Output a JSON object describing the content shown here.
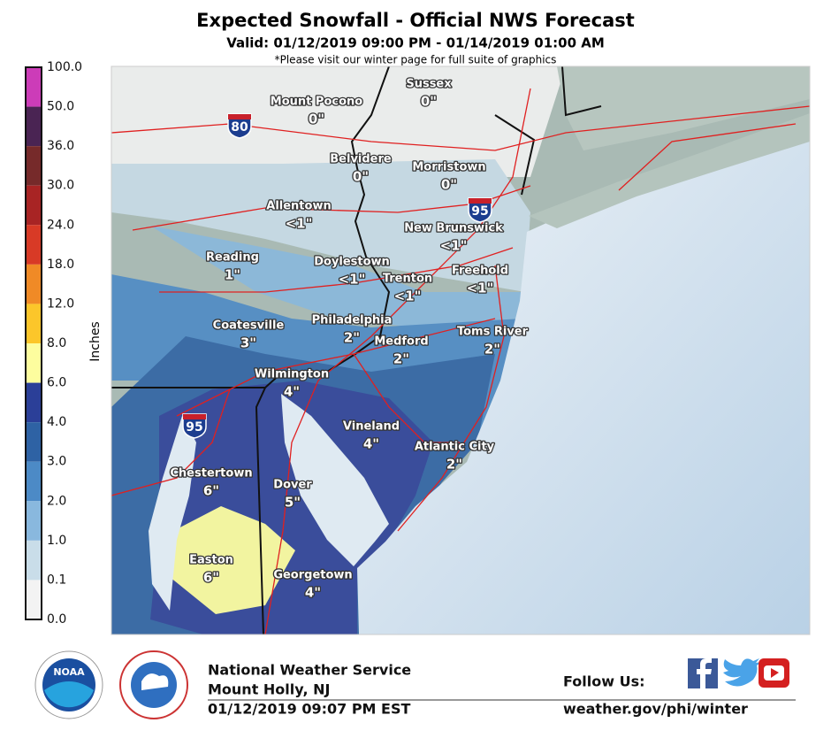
{
  "header": {
    "title": "Expected Snowfall - Official NWS Forecast",
    "valid": "Valid: 01/12/2019 09:00 PM - 01/14/2019 01:00 AM",
    "note": "*Please visit our winter page for full suite of graphics"
  },
  "legend": {
    "label": "Inches",
    "ticks": [
      "100.0",
      "50.0",
      "36.0",
      "30.0",
      "24.0",
      "18.0",
      "12.0",
      "8.0",
      "6.0",
      "4.0",
      "3.0",
      "2.0",
      "1.0",
      "0.1",
      "0.0"
    ],
    "colors": [
      "#cc3cb8",
      "#4a2453",
      "#762a2a",
      "#a82424",
      "#d83a26",
      "#f08a26",
      "#fcc62a",
      "#fdfd9e",
      "#2b3f98",
      "#2e62a4",
      "#4c8ac6",
      "#89b8de",
      "#c9dde9",
      "#f3f3f3"
    ]
  },
  "places": [
    {
      "name": "Mount Pocono",
      "amount": "0\""
    },
    {
      "name": "Sussex",
      "amount": "0\""
    },
    {
      "name": "Belvidere",
      "amount": "0\""
    },
    {
      "name": "Morristown",
      "amount": "0\""
    },
    {
      "name": "Allentown",
      "amount": "<1\""
    },
    {
      "name": "New Brunswick",
      "amount": "<1\""
    },
    {
      "name": "Reading",
      "amount": "1\""
    },
    {
      "name": "Doylestown",
      "amount": "<1\""
    },
    {
      "name": "Trenton",
      "amount": "<1\""
    },
    {
      "name": "Freehold",
      "amount": "<1\""
    },
    {
      "name": "Philadelphia",
      "amount": "2\""
    },
    {
      "name": "Coatesville",
      "amount": "3\""
    },
    {
      "name": "Medford",
      "amount": "2\""
    },
    {
      "name": "Toms River",
      "amount": "2\""
    },
    {
      "name": "Wilmington",
      "amount": "4\""
    },
    {
      "name": "Vineland",
      "amount": "4\""
    },
    {
      "name": "Atlantic City",
      "amount": "2\""
    },
    {
      "name": "Chestertown",
      "amount": "6\""
    },
    {
      "name": "Dover",
      "amount": "5\""
    },
    {
      "name": "Easton",
      "amount": "6\""
    },
    {
      "name": "Georgetown",
      "amount": "4\""
    }
  ],
  "highways": [
    "80",
    "95",
    "95"
  ],
  "footer": {
    "org": "National Weather Service",
    "office": "Mount Holly, NJ",
    "issued": "01/12/2019 09:07 PM EST",
    "follow": "Follow Us:",
    "url": "weather.gov/phi/winter",
    "logo": "NOAA"
  }
}
